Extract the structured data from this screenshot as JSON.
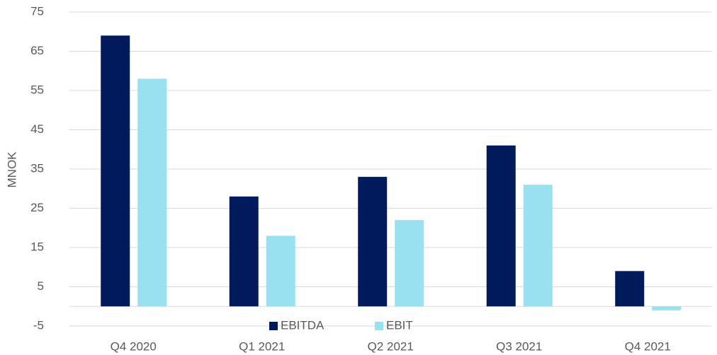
{
  "chart_data": {
    "type": "bar",
    "ylabel": "MNOK",
    "categories": [
      "Q4 2020",
      "Q1 2021",
      "Q2 2021",
      "Q3 2021",
      "Q4 2021"
    ],
    "series": [
      {
        "name": "EBITDA",
        "color": "#001a5c",
        "values": [
          69,
          28,
          33,
          41,
          9
        ]
      },
      {
        "name": "EBIT",
        "color": "#99e1f0",
        "values": [
          58,
          18,
          22,
          31,
          -1
        ]
      }
    ],
    "ylim": [
      -5,
      75
    ],
    "yticks": [
      -5,
      5,
      15,
      25,
      35,
      45,
      55,
      65,
      75
    ],
    "grid": true,
    "legend": "bottom"
  }
}
